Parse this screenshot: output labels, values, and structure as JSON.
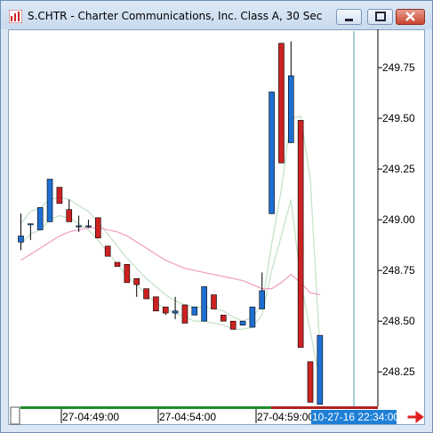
{
  "window": {
    "title": "S.CHTR - Charter Communications, Inc. Class A, 30 Sec",
    "icon": "chart-app-icon"
  },
  "colors": {
    "up": "#1f6fd1",
    "down": "#cc2222",
    "fast_band": "#c6e3c9",
    "slow_ma": "#f0a3c8",
    "cursor_line": "#4b9bb0",
    "time_highlight": "#1e7fd6",
    "scroll_green": "#1e8f2a",
    "scroll_red": "#b02020",
    "arrow": "#e02020"
  },
  "time_axis": {
    "labels": [
      "27-04:49:00",
      "27-04:54:00",
      "27-04:59:00"
    ],
    "cursor_label": "10-27-16 22:34:00"
  },
  "chart_data": {
    "type": "candlestick",
    "title": "S.CHTR - Charter Communications, Inc. Class A, 30 Sec",
    "y_ticks": [
      "249.75",
      "249.50",
      "249.25",
      "249.00",
      "248.75",
      "248.50",
      "248.25"
    ],
    "ylim": [
      248.08,
      249.93
    ],
    "x_labels": [
      "27-04:49:00",
      "27-04:54:00",
      "27-04:59:00"
    ],
    "candles": [
      {
        "o": 248.89,
        "h": 249.03,
        "l": 248.85,
        "c": 248.92
      },
      {
        "o": 248.98,
        "h": 248.98,
        "l": 248.9,
        "c": 248.98
      },
      {
        "o": 248.95,
        "h": 249.06,
        "l": 248.95,
        "c": 249.06
      },
      {
        "o": 248.99,
        "h": 249.2,
        "l": 248.99,
        "c": 249.2
      },
      {
        "o": 249.16,
        "h": 249.16,
        "l": 249.08,
        "c": 249.08
      },
      {
        "o": 249.05,
        "h": 249.1,
        "l": 248.99,
        "c": 248.99
      },
      {
        "o": 248.97,
        "h": 249.02,
        "l": 248.94,
        "c": 248.97
      },
      {
        "o": 248.97,
        "h": 249.0,
        "l": 248.96,
        "c": 248.97
      },
      {
        "o": 249.01,
        "h": 249.01,
        "l": 248.91,
        "c": 248.91
      },
      {
        "o": 248.87,
        "h": 248.87,
        "l": 248.82,
        "c": 248.82
      },
      {
        "o": 248.79,
        "h": 248.79,
        "l": 248.77,
        "c": 248.77
      },
      {
        "o": 248.78,
        "h": 248.78,
        "l": 248.69,
        "c": 248.69
      },
      {
        "o": 248.71,
        "h": 248.71,
        "l": 248.62,
        "c": 248.68
      },
      {
        "o": 248.66,
        "h": 248.66,
        "l": 248.61,
        "c": 248.61
      },
      {
        "o": 248.62,
        "h": 248.62,
        "l": 248.55,
        "c": 248.55
      },
      {
        "o": 248.57,
        "h": 248.57,
        "l": 248.53,
        "c": 248.54
      },
      {
        "o": 248.54,
        "h": 248.62,
        "l": 248.51,
        "c": 248.55
      },
      {
        "o": 248.58,
        "h": 248.58,
        "l": 248.49,
        "c": 248.49
      },
      {
        "o": 248.53,
        "h": 248.57,
        "l": 248.53,
        "c": 248.57
      },
      {
        "o": 248.5,
        "h": 248.67,
        "l": 248.5,
        "c": 248.67
      },
      {
        "o": 248.63,
        "h": 248.63,
        "l": 248.56,
        "c": 248.56
      },
      {
        "o": 248.53,
        "h": 248.53,
        "l": 248.5,
        "c": 248.5
      },
      {
        "o": 248.5,
        "h": 248.5,
        "l": 248.46,
        "c": 248.46
      },
      {
        "o": 248.48,
        "h": 248.5,
        "l": 248.48,
        "c": 248.5
      },
      {
        "o": 248.47,
        "h": 248.57,
        "l": 248.47,
        "c": 248.57
      },
      {
        "o": 248.56,
        "h": 248.74,
        "l": 248.56,
        "c": 248.65
      },
      {
        "o": 249.03,
        "h": 249.63,
        "l": 249.03,
        "c": 249.63
      },
      {
        "o": 249.87,
        "h": 249.87,
        "l": 249.28,
        "c": 249.28
      },
      {
        "o": 249.38,
        "h": 249.88,
        "l": 249.38,
        "c": 249.71
      },
      {
        "o": 249.49,
        "h": 249.49,
        "l": 248.37,
        "c": 248.37
      },
      {
        "o": 248.3,
        "h": 248.3,
        "l": 248.1,
        "c": 248.1
      },
      {
        "o": 248.09,
        "h": 248.43,
        "l": 248.09,
        "c": 248.43
      }
    ],
    "fast_band_upper": [
      248.98,
      249.04,
      249.06,
      249.1,
      249.11,
      249.1,
      249.07,
      249.04,
      248.99,
      248.93,
      248.87,
      248.81,
      248.76,
      248.71,
      248.67,
      248.63,
      248.6,
      248.58,
      248.57,
      248.57,
      248.56,
      248.55,
      248.52,
      248.5,
      248.52,
      248.58,
      248.88,
      249.15,
      249.5,
      249.51,
      249.2,
      248.35
    ],
    "fast_band_lower": [
      248.88,
      248.93,
      248.95,
      249.0,
      249.02,
      249.01,
      248.98,
      248.95,
      248.9,
      248.84,
      248.78,
      248.72,
      248.68,
      248.63,
      248.59,
      248.56,
      248.54,
      248.52,
      248.5,
      248.5,
      248.49,
      248.48,
      248.46,
      248.46,
      248.47,
      248.53,
      248.75,
      248.92,
      249.1,
      248.7,
      248.45,
      248.21
    ],
    "slow_ma": [
      248.8,
      248.83,
      248.86,
      248.89,
      248.92,
      248.94,
      248.95,
      248.96,
      248.96,
      248.95,
      248.94,
      248.92,
      248.89,
      248.86,
      248.83,
      248.8,
      248.78,
      248.76,
      248.75,
      248.74,
      248.73,
      248.72,
      248.71,
      248.7,
      248.68,
      248.66,
      248.66,
      248.69,
      248.73,
      248.69,
      248.64,
      248.63
    ]
  }
}
